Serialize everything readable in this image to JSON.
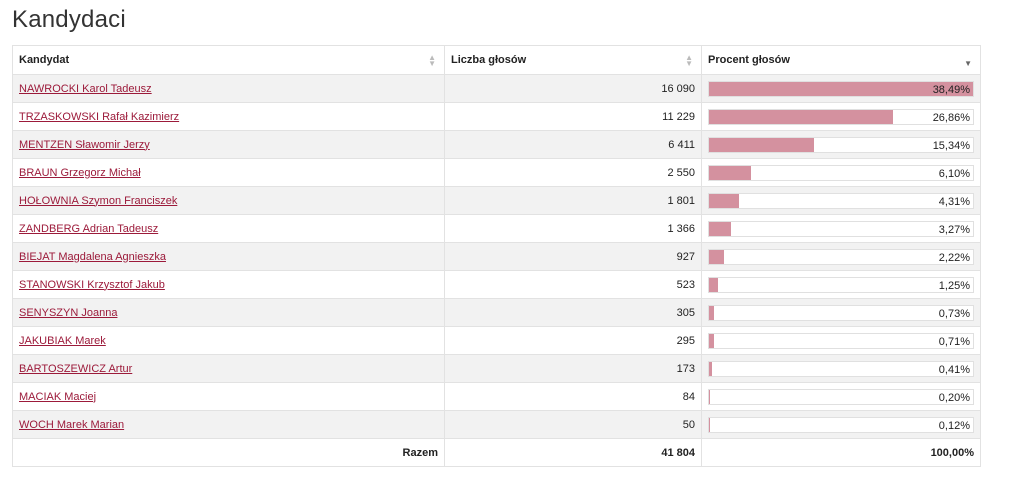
{
  "page": {
    "title": "Kandydaci"
  },
  "table": {
    "headers": {
      "candidate": "Kandydat",
      "votes": "Liczba głosów",
      "percent": "Procent głosów"
    },
    "rows": [
      {
        "name": "NAWROCKI Karol Tadeusz",
        "votes": "16 090",
        "percent": "38,49%",
        "share": 38.49
      },
      {
        "name": "TRZASKOWSKI Rafał Kazimierz",
        "votes": "11 229",
        "percent": "26,86%",
        "share": 26.86
      },
      {
        "name": "MENTZEN Sławomir Jerzy",
        "votes": "6 411",
        "percent": "15,34%",
        "share": 15.34
      },
      {
        "name": "BRAUN Grzegorz Michał",
        "votes": "2 550",
        "percent": "6,10%",
        "share": 6.1
      },
      {
        "name": "HOŁOWNIA Szymon Franciszek",
        "votes": "1 801",
        "percent": "4,31%",
        "share": 4.31
      },
      {
        "name": "ZANDBERG Adrian Tadeusz",
        "votes": "1 366",
        "percent": "3,27%",
        "share": 3.27
      },
      {
        "name": "BIEJAT Magdalena Agnieszka",
        "votes": "927",
        "percent": "2,22%",
        "share": 2.22
      },
      {
        "name": "STANOWSKI Krzysztof Jakub",
        "votes": "523",
        "percent": "1,25%",
        "share": 1.25
      },
      {
        "name": "SENYSZYN Joanna",
        "votes": "305",
        "percent": "0,73%",
        "share": 0.73
      },
      {
        "name": "JAKUBIAK Marek",
        "votes": "295",
        "percent": "0,71%",
        "share": 0.71
      },
      {
        "name": "BARTOSZEWICZ Artur",
        "votes": "173",
        "percent": "0,41%",
        "share": 0.41
      },
      {
        "name": "MACIAK Maciej",
        "votes": "84",
        "percent": "0,20%",
        "share": 0.2
      },
      {
        "name": "WOCH Marek Marian",
        "votes": "50",
        "percent": "0,12%",
        "share": 0.12
      }
    ],
    "footer": {
      "label": "Razem",
      "votes": "41 804",
      "percent": "100,00%"
    }
  },
  "colors": {
    "link": "#9c1a3a",
    "bar": "#d4919f",
    "stripe": "#f2f2f2"
  },
  "icons": {
    "sort": "sort-arrows-icon",
    "sort_active": "sort-desc-icon"
  }
}
